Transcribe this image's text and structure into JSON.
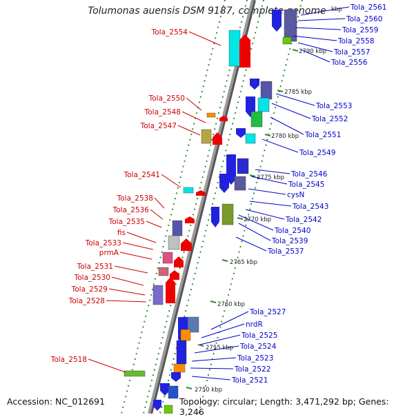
{
  "title": "Tolumonas auensis DSM 9187, complete genome",
  "accession": "Accession: NC_012691",
  "topology": "Topology: circular; Length: 3,471,292 bp; Genes: 3,246",
  "colors": {
    "backbone": "#8f8f8f",
    "reverse_label": "#cc0000",
    "forward_label": "#0000cc",
    "tick": "#2e8b2e"
  },
  "scale_labels": [
    "2790 kbp",
    "2785 kbp",
    "2780 kbp",
    "2775 kbp",
    "2770 kbp",
    "2765 kbp",
    "2760 kbp",
    "2755 kbp",
    "2750 kbp"
  ],
  "partial_scale_label": "kbp",
  "left_genes": [
    "Tola_2554",
    "Tola_2550",
    "Tola_2548",
    "Tola_2547",
    "Tola_2541",
    "Tola_2538",
    "Tola_2536",
    "Tola_2535",
    "fis",
    "Tola_2533",
    "prmA",
    "Tola_2531",
    "Tola_2530",
    "Tola_2529",
    "Tola_2528",
    "Tola_2518"
  ],
  "right_genes": [
    "Tola_2561",
    "Tola_2560",
    "Tola_2559",
    "Tola_2558",
    "Tola_2557",
    "Tola_2556",
    "Tola_2553",
    "Tola_2552",
    "Tola_2551",
    "Tola_2549",
    "Tola_2546",
    "Tola_2545",
    "cysN",
    "Tola_2543",
    "Tola_2542",
    "Tola_2540",
    "Tola_2539",
    "Tola_2537",
    "Tola_2527",
    "nrdR",
    "Tola_2525",
    "Tola_2524",
    "Tola_2523",
    "Tola_2522",
    "Tola_2521"
  ]
}
